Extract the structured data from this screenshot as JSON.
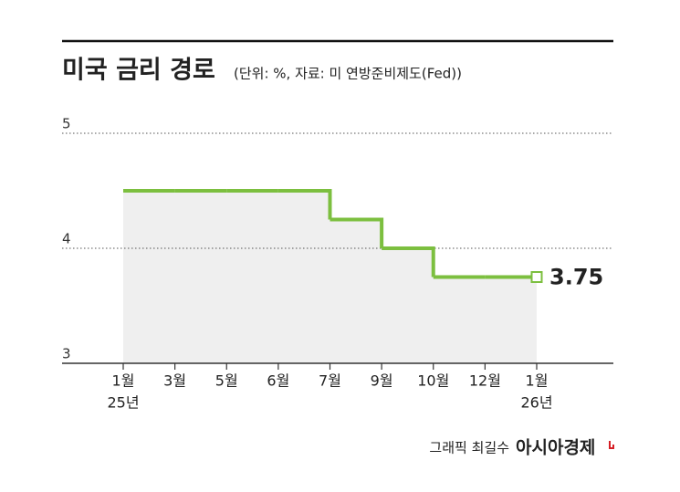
{
  "chart_data": {
    "type": "step",
    "title": "미국 금리 경로",
    "subtitle": "(단위: %, 자료: 미 연방준비제도(Fed))",
    "categories": [
      "1월",
      "3월",
      "5월",
      "6월",
      "7월",
      "9월",
      "10월",
      "12월",
      "1월"
    ],
    "year_labels": [
      "25년",
      null,
      null,
      null,
      null,
      null,
      null,
      null,
      "26년"
    ],
    "values": [
      4.5,
      4.5,
      4.5,
      4.5,
      4.25,
      4.0,
      3.75,
      3.75,
      3.75
    ],
    "color": "#7cbf3f",
    "ylim": [
      3,
      5
    ],
    "yticks": [
      3,
      4,
      5
    ],
    "grid": true,
    "credit": "그래픽 최길수",
    "publisher": "아시아경제"
  }
}
